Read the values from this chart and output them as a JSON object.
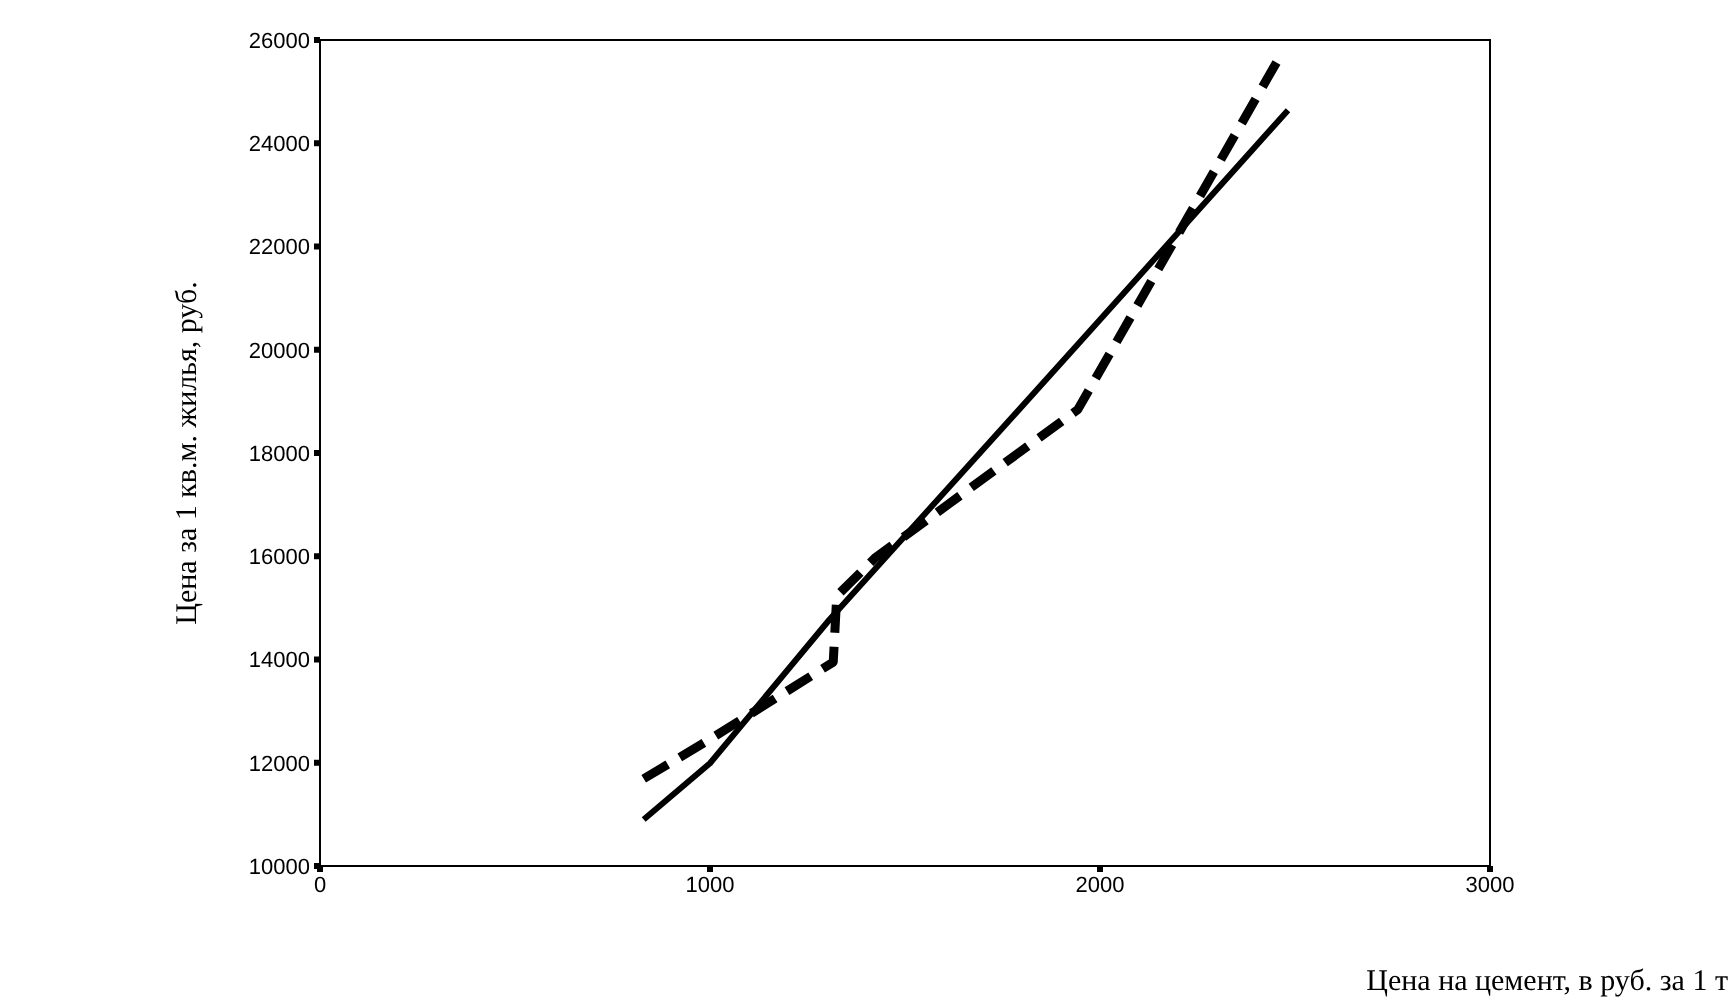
{
  "chart_data": {
    "type": "line",
    "xlabel": "Цена на цемент, в руб. за 1 т",
    "ylabel": "Цена за 1 кв.м. жилья, руб.",
    "xlim": [
      0,
      3000
    ],
    "xticks": [
      0,
      1000,
      2000,
      3000
    ],
    "ylim": [
      10000,
      26000
    ],
    "yticks": [
      10000,
      12000,
      14000,
      16000,
      18000,
      20000,
      22000,
      24000,
      26000
    ],
    "grid": false,
    "legend": false,
    "marker": "none",
    "series": [
      {
        "color": "#000000",
        "line_style": "solid",
        "x": [
          830,
          1000,
          1306,
          1963,
          2482
        ],
        "values": [
          10900,
          11990,
          14770,
          20270,
          24640
        ]
      },
      {
        "color": "#000000",
        "line_style": "dashed",
        "x": [
          830,
          997,
          1316,
          1325,
          1425,
          1943,
          2462
        ],
        "values": [
          11690,
          12440,
          13950,
          15230,
          15980,
          18840,
          25690
        ]
      }
    ]
  }
}
